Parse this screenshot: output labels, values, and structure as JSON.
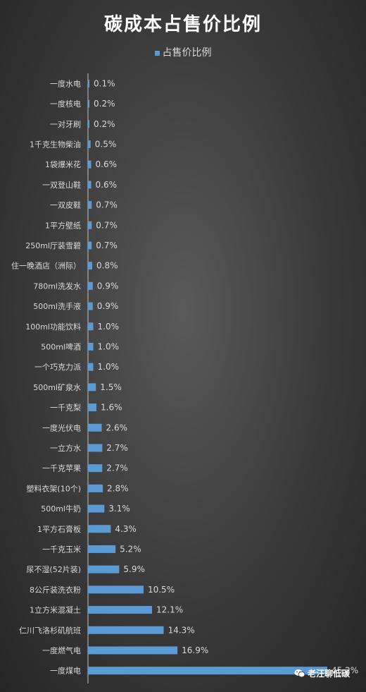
{
  "chart_data": {
    "type": "bar",
    "orientation": "horizontal",
    "title": "碳成本占售价比例",
    "legend": {
      "entries": [
        "占售价比例"
      ],
      "placement": "top"
    },
    "series": [
      {
        "name": "占售价比例",
        "color": "#5b9bd5"
      }
    ],
    "categories": [
      "一度水电",
      "一度核电",
      "一对牙刷",
      "1千克生物柴油",
      "1袋爆米花",
      "一双登山鞋",
      "一双皮鞋",
      "1平方壁纸",
      "250ml厅装雪碧",
      "住一晚酒店（洲际）",
      "780ml洗发水",
      "500ml洗手液",
      "100ml功能饮料",
      "500ml啤酒",
      "一个巧克力派",
      "500ml矿泉水",
      "一千克梨",
      "一度光伏电",
      "一立方水",
      "一千克苹果",
      "塑料衣架(10个)",
      "500ml牛奶",
      "1平方石膏板",
      "一千克玉米",
      "尿不湿(52片装)",
      "8公斤装洗衣粉",
      "1立方米混凝土",
      "仁川飞洛杉矶航班",
      "一度燃气电",
      "一度煤电"
    ],
    "values": [
      0.1,
      0.2,
      0.2,
      0.5,
      0.6,
      0.6,
      0.7,
      0.7,
      0.7,
      0.8,
      0.9,
      0.9,
      1.0,
      1.0,
      1.0,
      1.5,
      1.6,
      2.6,
      2.7,
      2.7,
      2.8,
      3.1,
      4.3,
      5.2,
      5.9,
      10.5,
      12.1,
      14.3,
      16.9,
      45.2
    ],
    "value_labels": [
      "0.1%",
      "0.2%",
      "0.2%",
      "0.5%",
      "0.6%",
      "0.6%",
      "0.7%",
      "0.7%",
      "0.7%",
      "0.8%",
      "0.9%",
      "0.9%",
      "1.0%",
      "1.0%",
      "1.0%",
      "1.5%",
      "1.6%",
      "2.6%",
      "2.7%",
      "2.7%",
      "2.8%",
      "3.1%",
      "4.3%",
      "5.2%",
      "5.9%",
      "10.5%",
      "12.1%",
      "14.3%",
      "16.9%",
      "45.2%"
    ],
    "unit": "%",
    "grid": false,
    "xlim": [
      0,
      45.2
    ]
  },
  "watermark": {
    "text": "老汪聊低碳",
    "icon": "wechat-icon"
  }
}
